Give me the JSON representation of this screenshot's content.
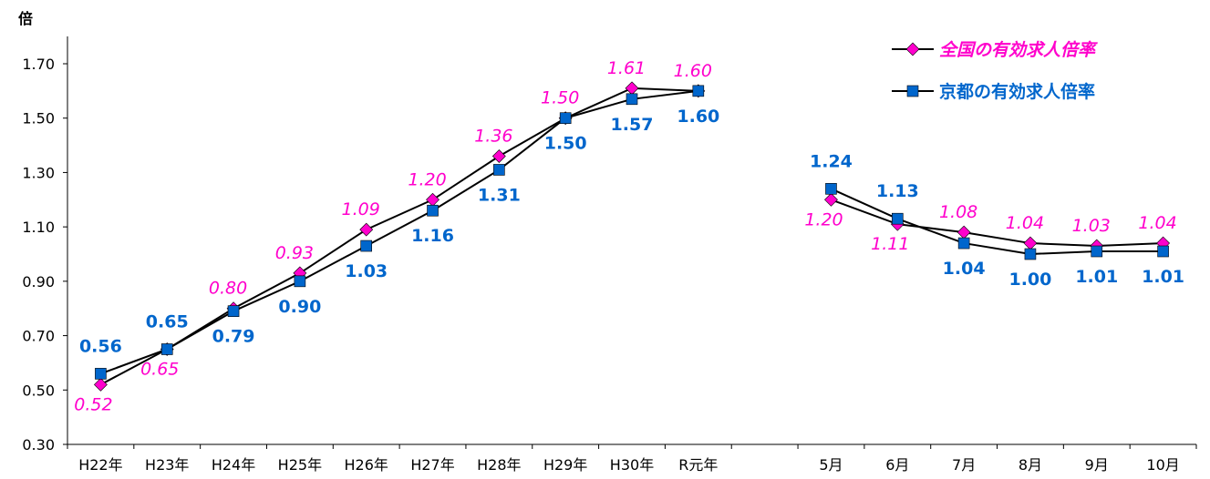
{
  "chart_data": {
    "type": "line",
    "unit_label": "倍",
    "categories": [
      "H22年",
      "H23年",
      "H24年",
      "H25年",
      "H26年",
      "H27年",
      "H28年",
      "H29年",
      "H30年",
      "R元年",
      "",
      "5月",
      "6月",
      "7月",
      "8月",
      "9月",
      "10月"
    ],
    "yticks": [
      "0.30",
      "0.50",
      "0.70",
      "0.90",
      "1.10",
      "1.30",
      "1.50",
      "1.70"
    ],
    "ylim": [
      0.3,
      1.7
    ],
    "grid": false,
    "legend_position": "top-right",
    "series": [
      {
        "name": "全国の有効求人倍率",
        "marker": "diamond",
        "color": "#ff00cc",
        "values": [
          0.52,
          0.65,
          0.8,
          0.93,
          1.09,
          1.2,
          1.36,
          1.5,
          1.61,
          1.6,
          null,
          1.2,
          1.11,
          1.08,
          1.04,
          1.03,
          1.04
        ],
        "labels": [
          "0.52",
          "0.65",
          "0.80",
          "0.93",
          "1.09",
          "1.20",
          "1.36",
          "1.50",
          "1.61",
          "1.60",
          "",
          "1.20",
          "1.11",
          "1.08",
          "1.04",
          "1.03",
          "1.04"
        ]
      },
      {
        "name": "京都の有効求人倍率",
        "marker": "square",
        "color": "#0066cc",
        "values": [
          0.56,
          0.65,
          0.79,
          0.9,
          1.03,
          1.16,
          1.31,
          1.5,
          1.57,
          1.6,
          null,
          1.24,
          1.13,
          1.04,
          1.0,
          1.01,
          1.01
        ],
        "labels": [
          "0.56",
          "0.65",
          "0.79",
          "0.90",
          "1.03",
          "1.16",
          "1.31",
          "1.50",
          "1.57",
          "1.60",
          "",
          "1.24",
          "1.13",
          "1.04",
          "1.00",
          "1.01",
          "1.01"
        ]
      }
    ]
  }
}
